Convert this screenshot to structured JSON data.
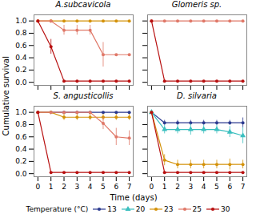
{
  "chart_data": [
    {
      "type": "line",
      "title": "A.subcavicola",
      "x": [
        0,
        1,
        2,
        3,
        4,
        5,
        6,
        7
      ],
      "series": [
        {
          "name": "23",
          "values": [
            1.0,
            1.0,
            1.0,
            1.0,
            1.0,
            1.0,
            1.0,
            1.0
          ],
          "yerr": [
            0,
            0,
            0,
            0,
            0,
            0,
            0,
            0
          ]
        },
        {
          "name": "25",
          "values": [
            1.0,
            1.0,
            0.85,
            0.85,
            0.85,
            0.45,
            0.45,
            0.45
          ],
          "yerr": [
            0,
            0,
            0.08,
            0.08,
            0.08,
            0.2,
            0.0,
            0.0
          ]
        },
        {
          "name": "30",
          "values": [
            1.0,
            0.58,
            0.02,
            0.02,
            0.02,
            0.02,
            0.02,
            0.02
          ],
          "yerr": [
            0,
            0.12,
            0,
            0,
            0,
            0,
            0,
            0
          ]
        }
      ],
      "xlim": [
        -0.3,
        7.3
      ],
      "xticks": [
        0,
        1,
        2,
        3,
        4,
        5,
        6,
        7
      ],
      "ylim": [
        -0.05,
        1.1
      ],
      "yticks": [
        {
          "value": 0,
          "label": "0.0"
        },
        0.2,
        0.4,
        0.6,
        0.8,
        {
          "value": 1,
          "label": "1.0"
        }
      ],
      "tick_labels": "y"
    },
    {
      "type": "line",
      "title": "Glomeris sp.",
      "x": [
        0,
        1,
        2,
        3,
        4,
        5,
        6,
        7
      ],
      "series": [
        {
          "name": "25",
          "values": [
            1.0,
            1.0,
            1.0,
            1.0,
            1.0,
            1.0,
            1.0,
            1.0
          ],
          "yerr": [
            0,
            0,
            0,
            0,
            0,
            0,
            0,
            0
          ]
        },
        {
          "name": "30",
          "values": [
            1.0,
            0.02,
            0.02,
            0.02,
            0.02,
            0.02,
            0.02,
            0.02
          ],
          "yerr": [
            0,
            0,
            0,
            0,
            0,
            0,
            0,
            0
          ]
        }
      ],
      "xlim": [
        -0.3,
        7.3
      ],
      "xticks": [
        0,
        1,
        2,
        3,
        4,
        5,
        6,
        7
      ],
      "ylim": [
        -0.05,
        1.1
      ],
      "yticks": [
        {
          "value": 0,
          "label": "0.0"
        },
        0.2,
        0.4,
        0.6,
        0.8,
        {
          "value": 1,
          "label": "1.0"
        }
      ],
      "tick_labels": false
    },
    {
      "type": "line",
      "title": "S. angusticollis",
      "x": [
        0,
        1,
        2,
        3,
        4,
        5,
        6,
        7
      ],
      "series": [
        {
          "name": "13",
          "values": [
            1.0,
            1.0,
            1.0,
            1.0,
            1.0,
            1.0,
            1.0,
            1.0
          ],
          "yerr": [
            0,
            0,
            0,
            0,
            0,
            0,
            0,
            0
          ]
        },
        {
          "name": "23",
          "values": [
            1.0,
            1.0,
            0.92,
            0.92,
            0.92,
            0.92,
            0.92,
            0.92
          ],
          "yerr": [
            0,
            0,
            0.05,
            0.05,
            0.05,
            0.05,
            0.05,
            0.05
          ]
        },
        {
          "name": "25",
          "values": [
            1.0,
            1.0,
            1.0,
            1.0,
            1.0,
            0.82,
            0.6,
            0.58
          ],
          "yerr": [
            0,
            0,
            0,
            0,
            0,
            0.1,
            0.14,
            0.12
          ]
        },
        {
          "name": "30",
          "values": [
            1.0,
            0.02,
            0.02,
            0.02,
            0.02,
            0.02,
            0.02,
            0.02
          ],
          "yerr": [
            0,
            0,
            0,
            0,
            0,
            0,
            0,
            0
          ]
        }
      ],
      "xlim": [
        -0.3,
        7.3
      ],
      "xticks": [
        0,
        1,
        2,
        3,
        4,
        5,
        6,
        7
      ],
      "ylim": [
        -0.05,
        1.1
      ],
      "yticks": [
        {
          "value": 0,
          "label": "0.0"
        },
        0.2,
        0.4,
        0.6,
        0.8,
        {
          "value": 1,
          "label": "1.0"
        }
      ],
      "tick_labels": true
    },
    {
      "type": "line",
      "title": "D. silvaria",
      "x": [
        0,
        1,
        2,
        3,
        4,
        5,
        6,
        7
      ],
      "series": [
        {
          "name": "13",
          "values": [
            1.0,
            0.83,
            0.83,
            0.83,
            0.83,
            0.83,
            0.83,
            0.83
          ],
          "yerr": [
            0,
            0.04,
            0.04,
            0.04,
            0.04,
            0.04,
            0.04,
            0.08
          ]
        },
        {
          "name": "20",
          "values": [
            1.0,
            0.72,
            0.72,
            0.72,
            0.72,
            0.72,
            0.68,
            0.62
          ],
          "yerr": [
            0,
            0.07,
            0.07,
            0.09,
            0.07,
            0.07,
            0.09,
            0.13
          ]
        },
        {
          "name": "23",
          "values": [
            1.0,
            0.22,
            0.15,
            0.15,
            0.15,
            0.15,
            0.15,
            0.15
          ],
          "yerr": [
            0,
            0.09,
            0.07,
            0.07,
            0.07,
            0.07,
            0.09,
            0.07
          ]
        },
        {
          "name": "30",
          "values": [
            1.0,
            0.02,
            0.02,
            0.02,
            0.02,
            0.02,
            0.02,
            0.02
          ],
          "yerr": [
            0,
            0,
            0,
            0,
            0,
            0,
            0,
            0
          ]
        }
      ],
      "xlim": [
        -0.3,
        7.3
      ],
      "xticks": [
        0,
        1,
        2,
        3,
        4,
        5,
        6,
        7
      ],
      "ylim": [
        -0.05,
        1.1
      ],
      "yticks": [
        {
          "value": 0,
          "label": "0.0"
        },
        0.2,
        0.4,
        0.6,
        0.8,
        {
          "value": 1,
          "label": "1.0"
        }
      ],
      "tick_labels": "x"
    }
  ],
  "xlabel": "Time (days)",
  "ylabel": "Cumulative survival",
  "legend": "bottom",
  "legend_title": "Temperature (°C)",
  "series": [
    {
      "name": "13",
      "color": "#2b3a8f",
      "marker": "circle"
    },
    {
      "name": "20",
      "color": "#3bbfbf",
      "marker": "triangle"
    },
    {
      "name": "23",
      "color": "#d4920a",
      "marker": "circle"
    },
    {
      "name": "25",
      "color": "#e07868",
      "marker": "circle"
    },
    {
      "name": "30",
      "color": "#b81010",
      "marker": "circle"
    }
  ]
}
